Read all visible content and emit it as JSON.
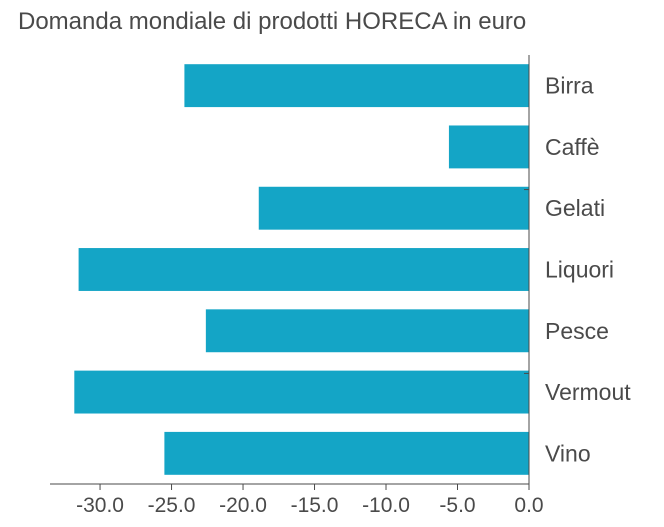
{
  "chart_data": {
    "type": "bar",
    "orientation": "horizontal",
    "title": "Domanda mondiale di prodotti HORECA in euro",
    "categories": [
      "Birra",
      "Caffè",
      "Gelati",
      "Liquori",
      "Pesce",
      "Vermout",
      "Vino"
    ],
    "values": [
      -24.1,
      -5.6,
      -18.9,
      -31.5,
      -22.6,
      -31.8,
      -25.5
    ],
    "xlim": [
      -33.5,
      0
    ],
    "xticks": [
      -30.0,
      -25.0,
      -20.0,
      -15.0,
      -10.0,
      -5.0,
      0.0
    ],
    "xtick_labels": [
      "-30.0",
      "-25.0",
      "-20.0",
      "-15.0",
      "-10.0",
      "-5.0",
      "0.0"
    ],
    "xlabel": "",
    "ylabel": "",
    "bar_color": "#14a5c6",
    "axis_color": "#4a4a4a",
    "text_color": "#4a4a4a",
    "grid": false,
    "legend": false
  }
}
